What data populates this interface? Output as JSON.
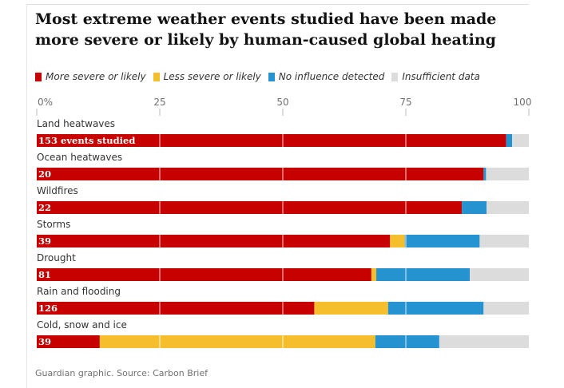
{
  "title": "Most extreme weather events studied have been made more severe or likely by human-caused global heating",
  "source": "Guardian graphic. Source: Carbon Brief",
  "colors": {
    "more_severe": "#c70000",
    "less_severe": "#f5be2c",
    "no_influence": "#2493d0",
    "insufficient": "#dcdcdc"
  },
  "chart_data": {
    "type": "bar",
    "orientation": "horizontal",
    "stacked": true,
    "x_ticks": [
      "0%",
      "25",
      "50",
      "75",
      "100"
    ],
    "xlim": [
      0,
      100
    ],
    "grid": true,
    "legend_position": "top",
    "categories": [
      "Land heatwaves",
      "Ocean heatwaves",
      "Wildfires",
      "Storms",
      "Drought",
      "Rain and flooding",
      "Cold, snow and ice"
    ],
    "bar_labels": [
      "153 events studied",
      "20",
      "22",
      "39",
      "81",
      "126",
      "39"
    ],
    "series": [
      {
        "name": "More severe or likely",
        "color": "#c70000",
        "values": [
          95.4,
          90.8,
          86.4,
          71.8,
          68.0,
          56.4,
          12.8
        ]
      },
      {
        "name": "Less severe or likely",
        "color": "#f5be2c",
        "values": [
          0.0,
          0.0,
          0.0,
          3.0,
          1.0,
          15.0,
          56.0
        ]
      },
      {
        "name": "No influence detected",
        "color": "#2493d0",
        "values": [
          1.2,
          0.5,
          5.0,
          15.2,
          19.0,
          19.4,
          13.0
        ]
      },
      {
        "name": "Insufficient data",
        "color": "#dcdcdc",
        "values": [
          3.4,
          8.7,
          8.6,
          10.0,
          12.0,
          9.2,
          18.2
        ]
      }
    ]
  }
}
